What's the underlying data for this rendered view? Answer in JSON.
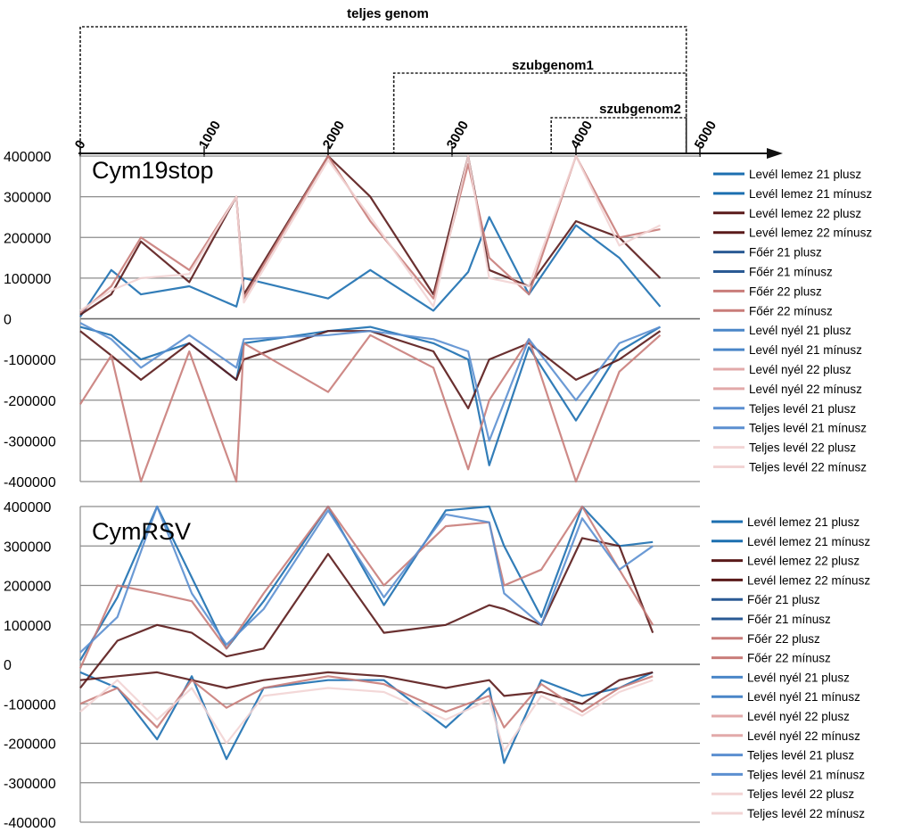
{
  "genome_map": {
    "regions": [
      {
        "label": "teljes genom",
        "start": 0,
        "end": 4890
      },
      {
        "label": "szubgenom1",
        "start": 2530,
        "end": 4890
      },
      {
        "label": "szubgenom2",
        "start": 3800,
        "end": 4890
      }
    ],
    "axis_ticks": [
      0,
      1000,
      2000,
      3000,
      4000,
      5000
    ],
    "axis_max": 5000
  },
  "legend_items": [
    {
      "label": "Levél lemez 21 plusz",
      "color": "#1c6fb0"
    },
    {
      "label": "Levél lemez 21 mínusz",
      "color": "#1c6fb0"
    },
    {
      "label": "Levél lemez 22 plusz",
      "color": "#5a1a1a"
    },
    {
      "label": "Levél lemez 22 mínusz",
      "color": "#5a1a1a"
    },
    {
      "label": "Főér 21 plusz",
      "color": "#2a5a94"
    },
    {
      "label": "Főér 21 mínusz",
      "color": "#2a5a94"
    },
    {
      "label": "Főér 22 plusz",
      "color": "#c97d7a"
    },
    {
      "label": "Főér 22 mínusz",
      "color": "#c97d7a"
    },
    {
      "label": "Levél nyél 21 plusz",
      "color": "#4a86c8"
    },
    {
      "label": "Levél nyél 21 mínusz",
      "color": "#4a86c8"
    },
    {
      "label": "Levél nyél 22 plusz",
      "color": "#e2a9a9"
    },
    {
      "label": "Levél nyél 22 mínusz",
      "color": "#e2a9a9"
    },
    {
      "label": "Teljes levél 21 plusz",
      "color": "#5b8fd0"
    },
    {
      "label": "Teljes levél 21 mínusz",
      "color": "#5b8fd0"
    },
    {
      "label": "Teljes levél 22 plusz",
      "color": "#f2d4d4"
    },
    {
      "label": "Teljes levél 22 mínusz",
      "color": "#f2d4d4"
    }
  ],
  "chart_data": [
    {
      "type": "line",
      "title": "Cym19stop",
      "xlabel": "",
      "ylabel": "",
      "xlim": [
        0,
        5000
      ],
      "ylim": [
        -400000,
        400000
      ],
      "yticks": [
        400000,
        300000,
        200000,
        100000,
        0,
        -100000,
        -200000,
        -300000,
        -400000
      ],
      "ytick_labels": [
        "400000",
        "300000",
        "200000",
        "100000",
        "0",
        "-100000",
        "-200000",
        "-300000",
        "-400000"
      ],
      "grid": true,
      "legend": "right",
      "x": [
        0,
        250,
        490,
        880,
        1260,
        1320,
        2000,
        2340,
        2850,
        3130,
        3300,
        3620,
        4000,
        4350,
        4680
      ],
      "series": [
        {
          "name": "Levél lemez 21 plusz",
          "values": [
            5000,
            120000,
            60000,
            80000,
            30000,
            100000,
            50000,
            120000,
            20000,
            115000,
            250000,
            60000,
            230000,
            150000,
            30000
          ]
        },
        {
          "name": "Levél lemez 21 mínusz",
          "values": [
            -20000,
            -40000,
            -100000,
            -60000,
            -150000,
            -60000,
            -30000,
            -20000,
            -60000,
            -100000,
            -360000,
            -70000,
            -250000,
            -80000,
            -20000
          ]
        },
        {
          "name": "Levél lemez 22 plusz",
          "values": [
            10000,
            60000,
            190000,
            90000,
            300000,
            60000,
            400000,
            300000,
            60000,
            400000,
            120000,
            80000,
            240000,
            200000,
            100000
          ]
        },
        {
          "name": "Levél lemez 22 mínusz",
          "values": [
            -30000,
            -90000,
            -150000,
            -60000,
            -150000,
            -100000,
            -30000,
            -30000,
            -80000,
            -220000,
            -100000,
            -60000,
            -150000,
            -100000,
            -30000
          ]
        },
        {
          "name": "Főér 22 plusz",
          "values": [
            15000,
            80000,
            200000,
            120000,
            300000,
            50000,
            400000,
            240000,
            50000,
            380000,
            150000,
            60000,
            400000,
            200000,
            220000
          ]
        },
        {
          "name": "Főér 22 mínusz",
          "values": [
            -210000,
            -90000,
            -400000,
            -80000,
            -400000,
            -60000,
            -180000,
            -40000,
            -120000,
            -370000,
            -200000,
            -50000,
            -400000,
            -130000,
            -40000
          ]
        },
        {
          "name": "Teljes levél 22 plusz",
          "values": [
            20000,
            70000,
            100000,
            110000,
            300000,
            40000,
            390000,
            250000,
            30000,
            400000,
            100000,
            80000,
            400000,
            180000,
            230000
          ]
        },
        {
          "name": "Teljes levél 21 mínusz",
          "values": [
            -10000,
            -50000,
            -120000,
            -40000,
            -120000,
            -50000,
            -40000,
            -30000,
            -50000,
            -80000,
            -300000,
            -50000,
            -200000,
            -60000,
            -20000
          ]
        }
      ]
    },
    {
      "type": "line",
      "title": "CymRSV",
      "xlabel": "",
      "ylabel": "",
      "xlim": [
        0,
        5000
      ],
      "ylim": [
        -400000,
        400000
      ],
      "yticks": [
        400000,
        300000,
        200000,
        100000,
        0,
        -100000,
        -200000,
        -300000,
        -400000
      ],
      "ytick_labels": [
        "400000",
        "300000",
        "200000",
        "100000",
        "0",
        "-100000",
        "-200000",
        "-300000",
        "-400000"
      ],
      "grid": true,
      "legend": "right",
      "x": [
        0,
        300,
        620,
        900,
        1180,
        1480,
        2000,
        2450,
        2950,
        3300,
        3420,
        3720,
        4050,
        4350,
        4620
      ],
      "series": [
        {
          "name": "Levél lemez 21 plusz",
          "values": [
            10000,
            170000,
            400000,
            220000,
            40000,
            160000,
            400000,
            150000,
            390000,
            400000,
            300000,
            120000,
            400000,
            300000,
            310000
          ]
        },
        {
          "name": "Levél lemez 21 mínusz",
          "values": [
            -20000,
            -60000,
            -190000,
            -30000,
            -240000,
            -60000,
            -40000,
            -40000,
            -160000,
            -60000,
            -250000,
            -40000,
            -80000,
            -60000,
            -20000
          ]
        },
        {
          "name": "Levél lemez 22 plusz",
          "values": [
            -60000,
            60000,
            100000,
            80000,
            20000,
            40000,
            280000,
            80000,
            100000,
            150000,
            140000,
            100000,
            320000,
            300000,
            80000
          ]
        },
        {
          "name": "Levél lemez 22 mínusz",
          "values": [
            -40000,
            -30000,
            -20000,
            -40000,
            -60000,
            -40000,
            -20000,
            -30000,
            -60000,
            -40000,
            -80000,
            -70000,
            -100000,
            -40000,
            -20000
          ]
        },
        {
          "name": "Főér 22 plusz",
          "values": [
            -10000,
            200000,
            180000,
            160000,
            40000,
            180000,
            400000,
            200000,
            350000,
            360000,
            200000,
            240000,
            400000,
            240000,
            100000
          ]
        },
        {
          "name": "Főér 22 mínusz",
          "values": [
            -100000,
            -60000,
            -160000,
            -40000,
            -110000,
            -60000,
            -30000,
            -50000,
            -120000,
            -80000,
            -160000,
            -50000,
            -120000,
            -60000,
            -30000
          ]
        },
        {
          "name": "Teljes levél 21 plusz",
          "values": [
            30000,
            120000,
            400000,
            180000,
            50000,
            140000,
            390000,
            170000,
            380000,
            360000,
            180000,
            100000,
            370000,
            240000,
            300000
          ]
        },
        {
          "name": "Teljes levél 22 mínusz",
          "values": [
            -120000,
            -40000,
            -140000,
            -60000,
            -200000,
            -80000,
            -60000,
            -70000,
            -140000,
            -90000,
            -220000,
            -80000,
            -130000,
            -70000,
            -40000
          ]
        }
      ]
    }
  ]
}
